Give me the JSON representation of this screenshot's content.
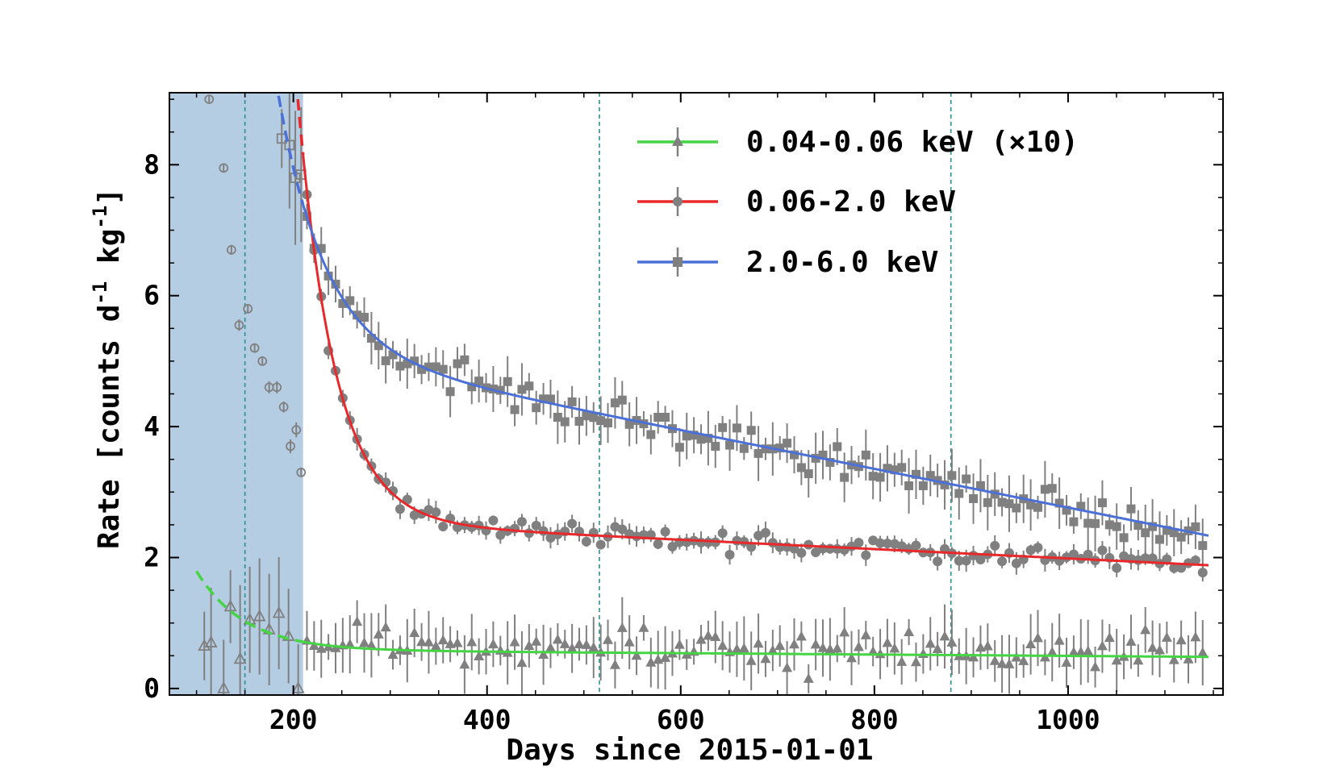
{
  "chart_data": {
    "type": "scatter",
    "xlabel": "Days since 2015-01-01",
    "ylabel": "Rate [counts d",
    "ylabel_sup1": "-1",
    "ylabel_mid": " kg",
    "ylabel_sup2": "-1",
    "ylabel_end": "]",
    "xlim": [
      72,
      1160
    ],
    "ylim": [
      -0.1,
      9.1
    ],
    "xticks": [
      200,
      400,
      600,
      800,
      1000
    ],
    "xtick_labels": [
      "200",
      "400",
      "600",
      "800",
      "1000"
    ],
    "yticks": [
      0,
      2,
      4,
      6,
      8
    ],
    "ytick_labels": [
      "0",
      "2",
      "4",
      "6",
      "8"
    ],
    "shaded_region": [
      72,
      210
    ],
    "vlines": [
      150,
      516,
      879
    ],
    "legend_position": "top-right",
    "series": [
      {
        "name": "0.04-0.06 keV (×10)",
        "color": "#44d444",
        "marker": "triangle",
        "fit": {
          "amp": 1.2,
          "tau": 50,
          "base": 0.58,
          "slope": -0.00018,
          "t0": 100
        },
        "noise": 0.18,
        "err": 0.35,
        "seed": 11,
        "open_points": [
          {
            "x": 108,
            "y": 0.65
          },
          {
            "x": 115,
            "y": 0.7
          },
          {
            "x": 128,
            "y": 0.0
          },
          {
            "x": 135,
            "y": 1.25
          },
          {
            "x": 145,
            "y": 0.45
          },
          {
            "x": 155,
            "y": 1.05
          },
          {
            "x": 165,
            "y": 1.1
          },
          {
            "x": 175,
            "y": 0.9
          },
          {
            "x": 185,
            "y": 1.15
          },
          {
            "x": 195,
            "y": 0.8
          },
          {
            "x": 205,
            "y": 0.0
          }
        ]
      },
      {
        "name": "0.06-2.0 keV",
        "color": "#e8282a",
        "marker": "circle",
        "fit": {
          "amp": 5.6,
          "tau": 38,
          "base": 2.55,
          "slope": -0.00028,
          "t0": 210
        },
        "noise": 0.13,
        "err": 0.12,
        "seed": 23,
        "open_points": [
          {
            "x": 113,
            "y": 9.0
          },
          {
            "x": 128,
            "y": 7.95
          },
          {
            "x": 136,
            "y": 6.7
          },
          {
            "x": 144,
            "y": 5.55
          },
          {
            "x": 153,
            "y": 5.8
          },
          {
            "x": 160,
            "y": 5.2
          },
          {
            "x": 168,
            "y": 5.0
          },
          {
            "x": 175,
            "y": 4.6
          },
          {
            "x": 183,
            "y": 4.6
          },
          {
            "x": 190,
            "y": 4.3
          },
          {
            "x": 197,
            "y": 3.7
          },
          {
            "x": 203,
            "y": 3.95
          },
          {
            "x": 208,
            "y": 3.3
          }
        ]
      },
      {
        "name": "2.0-6.0 keV",
        "color": "#4b70d8",
        "marker": "square",
        "fit": {
          "amp": 8.0,
          "tau": 48,
          "base": 5.1,
          "slope": -0.00058,
          "t0": 150
        },
        "noise": 0.22,
        "err": 0.3,
        "seed": 37,
        "open_points": [
          {
            "x": 188,
            "y": 8.4
          },
          {
            "x": 196,
            "y": 8.3
          },
          {
            "x": 202,
            "y": 7.8
          },
          {
            "x": 208,
            "y": 7.85
          }
        ]
      }
    ]
  }
}
